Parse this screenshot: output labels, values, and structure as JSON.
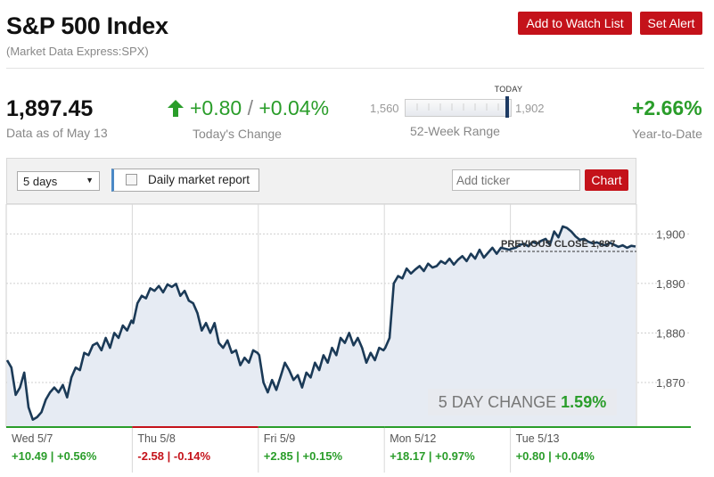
{
  "header": {
    "title": "S&P 500 Index",
    "subtitle": "(Market Data Express:SPX)",
    "watch_label": "Add to Watch List",
    "alert_label": "Set Alert"
  },
  "quote": {
    "price": "1,897.45",
    "as_of": "Data as of May 13",
    "change_points": "+0.80",
    "change_sep": "/",
    "change_percent": "+0.04%",
    "change_label": "Today's Change",
    "range_low": "1,560",
    "range_high": "1,902",
    "range_today_label": "TODAY",
    "range_label": "52-Week Range",
    "range_today_fraction": 0.98,
    "ytd": "+2.66%",
    "ytd_label": "Year-to-Date"
  },
  "controls": {
    "range_select": "5 days",
    "report_label": "Daily market report",
    "ticker_placeholder": "Add ticker",
    "chart_button": "Chart"
  },
  "chart_data": {
    "type": "area",
    "y_ticks": [
      "1,900",
      "1,890",
      "1,880",
      "1,870"
    ],
    "y_range": [
      1861,
      1906
    ],
    "previous_close_label": "PREVIOUS CLOSE 1,897",
    "previous_close": 1897,
    "days": [
      {
        "label": "Wed 5/7",
        "change": "+10.49 | +0.56%",
        "dir": "up"
      },
      {
        "label": "Thu 5/8",
        "change": "-2.58 | -0.14%",
        "dir": "down"
      },
      {
        "label": "Fri 5/9",
        "change": "+2.85 | +0.15%",
        "dir": "up"
      },
      {
        "label": "Mon 5/12",
        "change": "+18.17 | +0.97%",
        "dir": "up"
      },
      {
        "label": "Tue 5/13",
        "change": "+0.80 | +0.04%",
        "dir": "up"
      }
    ],
    "series": [
      [
        1874.5,
        1873,
        1867.5,
        1869,
        1872,
        1865,
        1862.5,
        1863,
        1864,
        1866.5,
        1868,
        1869,
        1868,
        1869.5,
        1867,
        1871,
        1873,
        1872.5,
        1876,
        1875.5,
        1877.5,
        1878,
        1876.5,
        1879,
        1877,
        1880,
        1879,
        1881.5,
        1880.5,
        1882.5
      ],
      [
        1882,
        1886,
        1887.5,
        1887,
        1889,
        1888.5,
        1889.5,
        1888.2,
        1889.8,
        1889.3,
        1889.9,
        1887.5,
        1888.5,
        1886.5,
        1886,
        1884,
        1880.5,
        1882,
        1880,
        1882,
        1878,
        1877,
        1878.5,
        1876,
        1876.5,
        1873.5,
        1875,
        1874,
        1876.5,
        1876
      ],
      [
        1875.5,
        1870,
        1868,
        1870.5,
        1868.5,
        1871.2,
        1874,
        1872.5,
        1870.5,
        1871.5,
        1869,
        1872,
        1871,
        1874,
        1872.5,
        1875.5,
        1874,
        1877,
        1875.5,
        1879,
        1878,
        1880,
        1877.5,
        1879,
        1877,
        1874,
        1876,
        1874.5,
        1877,
        1876.5
      ],
      [
        1877,
        1879,
        1890,
        1891.5,
        1891,
        1893,
        1892,
        1892.8,
        1893.5,
        1892.5,
        1894,
        1893.2,
        1893.5,
        1894.5,
        1894,
        1895,
        1893.8,
        1894.8,
        1895.5,
        1894.5,
        1896,
        1895,
        1896.8,
        1895.2,
        1896.2,
        1897.2,
        1896,
        1897.2,
        1897,
        1896.8
      ],
      [
        1897,
        1897.2,
        1897.8,
        1898,
        1897.5,
        1898.4,
        1898,
        1898.6,
        1899,
        1897.8,
        1900.5,
        1899.3,
        1901.5,
        1901.2,
        1900.5,
        1899.5,
        1898.8,
        1899,
        1898.4,
        1898.1,
        1898.3,
        1897.9,
        1897.7,
        1898.2,
        1897.8,
        1897.4,
        1897.7,
        1897.2,
        1897.6,
        1897.45
      ]
    ],
    "five_day_label": "5 DAY CHANGE",
    "five_day_value": "1.59%",
    "colors": {
      "line": "#1b3a57",
      "fill": "#e6ebf3",
      "up": "#2a9d2a",
      "down": "#c4121a"
    }
  }
}
